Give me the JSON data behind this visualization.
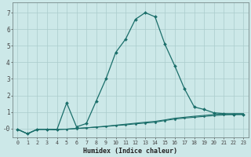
{
  "xlabel": "Humidex (Indice chaleur)",
  "ylabel": "",
  "background_color": "#cce8e8",
  "line_color": "#1a6e6a",
  "grid_color": "#aacccc",
  "x_main": [
    0,
    1,
    2,
    3,
    4,
    5,
    6,
    7,
    8,
    9,
    10,
    11,
    12,
    13,
    14,
    15,
    16,
    17,
    18,
    19,
    20,
    21,
    22,
    23
  ],
  "y_main": [
    -0.05,
    -0.32,
    -0.05,
    -0.05,
    -0.08,
    1.55,
    0.1,
    0.3,
    1.65,
    3.0,
    4.6,
    5.4,
    6.6,
    7.0,
    6.75,
    5.1,
    3.8,
    2.4,
    1.3,
    1.15,
    0.95,
    0.9,
    0.85,
    0.85
  ],
  "x_line2": [
    0,
    1,
    2,
    3,
    4,
    5,
    6,
    7,
    8,
    9,
    10,
    11,
    12,
    13,
    14,
    15,
    16,
    17,
    18,
    19,
    20,
    21,
    22,
    23
  ],
  "y_line2": [
    -0.05,
    -0.32,
    -0.05,
    -0.05,
    -0.06,
    -0.04,
    0.0,
    0.04,
    0.08,
    0.12,
    0.18,
    0.22,
    0.28,
    0.33,
    0.38,
    0.48,
    0.57,
    0.63,
    0.68,
    0.73,
    0.78,
    0.82,
    0.84,
    0.85
  ],
  "x_line3": [
    0,
    1,
    2,
    3,
    4,
    5,
    6,
    7,
    8,
    9,
    10,
    11,
    12,
    13,
    14,
    15,
    16,
    17,
    18,
    19,
    20,
    21,
    22,
    23
  ],
  "y_line3": [
    -0.05,
    -0.32,
    -0.05,
    -0.05,
    -0.06,
    -0.04,
    0.0,
    0.04,
    0.09,
    0.14,
    0.2,
    0.26,
    0.32,
    0.38,
    0.43,
    0.52,
    0.62,
    0.68,
    0.74,
    0.79,
    0.85,
    0.88,
    0.9,
    0.9
  ],
  "ylim": [
    -0.55,
    7.6
  ],
  "xlim": [
    -0.5,
    23.5
  ],
  "yticks": [
    0,
    1,
    2,
    3,
    4,
    5,
    6,
    7
  ],
  "ytick_labels": [
    "-0",
    "1",
    "2",
    "3",
    "4",
    "5",
    "6",
    "7"
  ],
  "xtick_labels": [
    "0",
    "1",
    "2",
    "3",
    "4",
    "5",
    "6",
    "7",
    "8",
    "9",
    "10",
    "11",
    "12",
    "13",
    "14",
    "15",
    "16",
    "17",
    "18",
    "19",
    "20",
    "21",
    "22",
    "23"
  ],
  "figsize": [
    3.2,
    2.0
  ],
  "dpi": 100
}
